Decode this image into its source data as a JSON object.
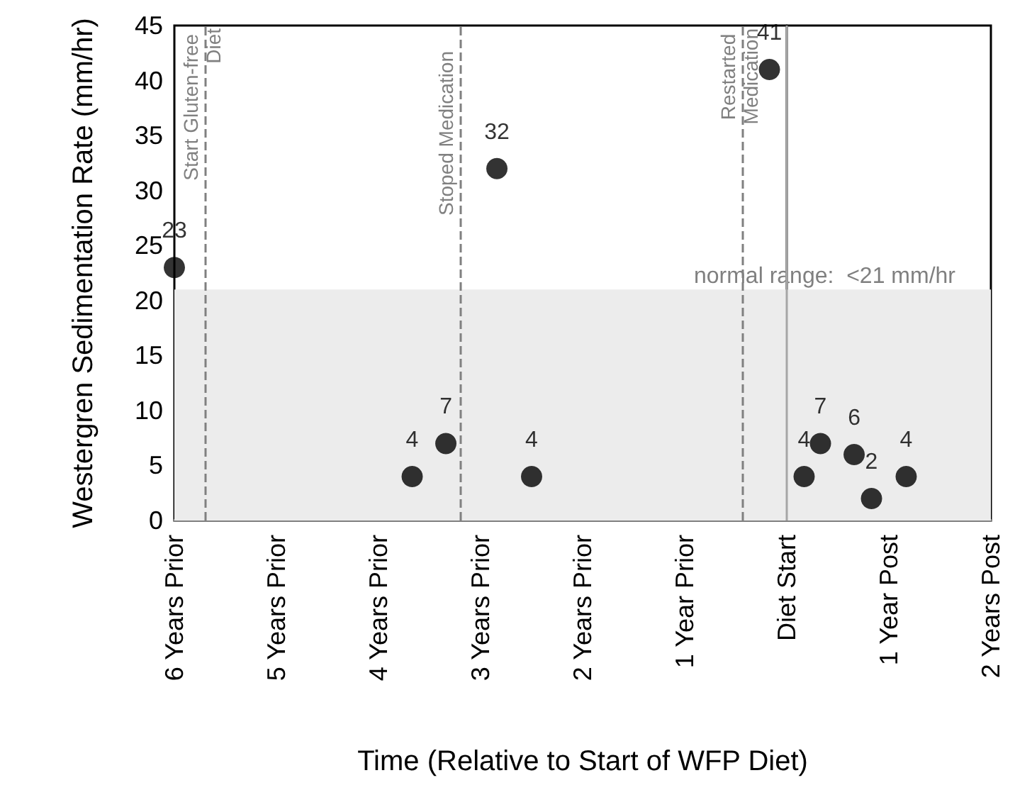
{
  "chart_data": {
    "type": "scatter",
    "xlabel": "Time (Relative to Start of WFP Diet)",
    "ylabel": "Westergren Sedimentation Rate (mm/hr)",
    "x": [
      -6,
      -3.67,
      -3.34,
      -2.84,
      -2.5,
      -0.17,
      0.17,
      0.33,
      0.66,
      0.83,
      1.17
    ],
    "series": [
      {
        "color": "#000000",
        "values": [
          23,
          4,
          7,
          32,
          4,
          41,
          4,
          7,
          6,
          2,
          4
        ]
      }
    ],
    "data_labels": true,
    "marker": "circle",
    "grid": false,
    "xlim": [
      -6,
      2
    ],
    "xticks": [
      {
        "value": -6,
        "label": "6 Years Prior"
      },
      {
        "value": -5,
        "label": "5 Years Prior"
      },
      {
        "value": -4,
        "label": "4 Years Prior"
      },
      {
        "value": -3,
        "label": "3 Years Prior"
      },
      {
        "value": -2,
        "label": "2 Years Prior"
      },
      {
        "value": -1,
        "label": "1 Year Prior"
      },
      {
        "value": 0,
        "label": "Diet Start"
      },
      {
        "value": 1,
        "label": "1 Year Post"
      },
      {
        "value": 2,
        "label": "2 Years Post"
      }
    ],
    "ylim": [
      0,
      45
    ],
    "yticks": [
      0,
      5,
      10,
      15,
      20,
      25,
      30,
      35,
      40,
      45
    ],
    "ref_lines": [
      {
        "axis": "x",
        "value": -5.7,
        "label": "Start Gluten-free Diet",
        "color": "#808080",
        "line_style": "dashed"
      },
      {
        "axis": "x",
        "value": -3.2,
        "label": "Stoped Medication",
        "color": "#808080",
        "line_style": "dashed"
      },
      {
        "axis": "x",
        "value": -0.44,
        "label": "Restarted Medication",
        "color": "#808080",
        "line_style": "dashed"
      },
      {
        "axis": "x",
        "value": 0,
        "label": null,
        "color": "#a6a6a6",
        "line_style": "solid"
      }
    ],
    "bands": [
      {
        "axis": "y",
        "from": 0,
        "to": 21,
        "label": "normal range:  <21 mm/hr",
        "color": "#ececec"
      }
    ]
  }
}
